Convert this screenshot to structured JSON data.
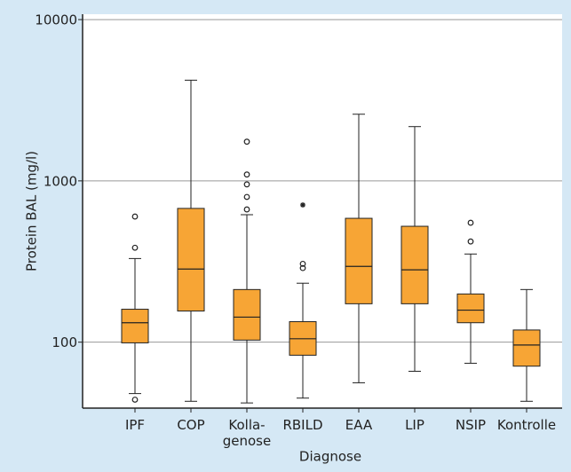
{
  "chart_data": {
    "type": "boxplot",
    "y_label": "Protein BAL (mg/l)",
    "x_label": "Diagnose",
    "categories": [
      "IPF",
      "COP",
      "Kolla-\ngenose",
      "RBILD",
      "EAA",
      "LIP",
      "NSIP",
      "Kontrolle"
    ],
    "color": "#f7a535",
    "log_y": true,
    "grid": true,
    "ylim": [
      39,
      10800
    ],
    "yticks": [
      100,
      1000,
      10000
    ],
    "boxes": [
      {
        "min": 48,
        "q1": 99,
        "median": 132,
        "q3": 160,
        "max": 330,
        "outliers": [
          601,
          385,
          44
        ],
        "extremes": []
      },
      {
        "min": 43,
        "q1": 156,
        "median": 284,
        "q3": 675,
        "max": 4210,
        "outliers": [],
        "extremes": []
      },
      {
        "min": 42,
        "q1": 103,
        "median": 143,
        "q3": 212,
        "max": 617,
        "outliers": [
          1750,
          1095,
          951,
          795,
          665
        ],
        "extremes": []
      },
      {
        "min": 45,
        "q1": 83,
        "median": 105,
        "q3": 134,
        "max": 232,
        "outliers": [
          306,
          288
        ],
        "extremes": [
          709
        ]
      },
      {
        "min": 56,
        "q1": 173,
        "median": 295,
        "q3": 586,
        "max": 2590,
        "outliers": [],
        "extremes": []
      },
      {
        "min": 66,
        "q1": 173,
        "median": 281,
        "q3": 523,
        "max": 2170,
        "outliers": [],
        "extremes": []
      },
      {
        "min": 74,
        "q1": 132,
        "median": 158,
        "q3": 199,
        "max": 352,
        "outliers": [
          550,
          421
        ],
        "extremes": []
      },
      {
        "min": 43,
        "q1": 71,
        "median": 96,
        "q3": 119,
        "max": 212,
        "outliers": [],
        "extremes": []
      }
    ]
  }
}
